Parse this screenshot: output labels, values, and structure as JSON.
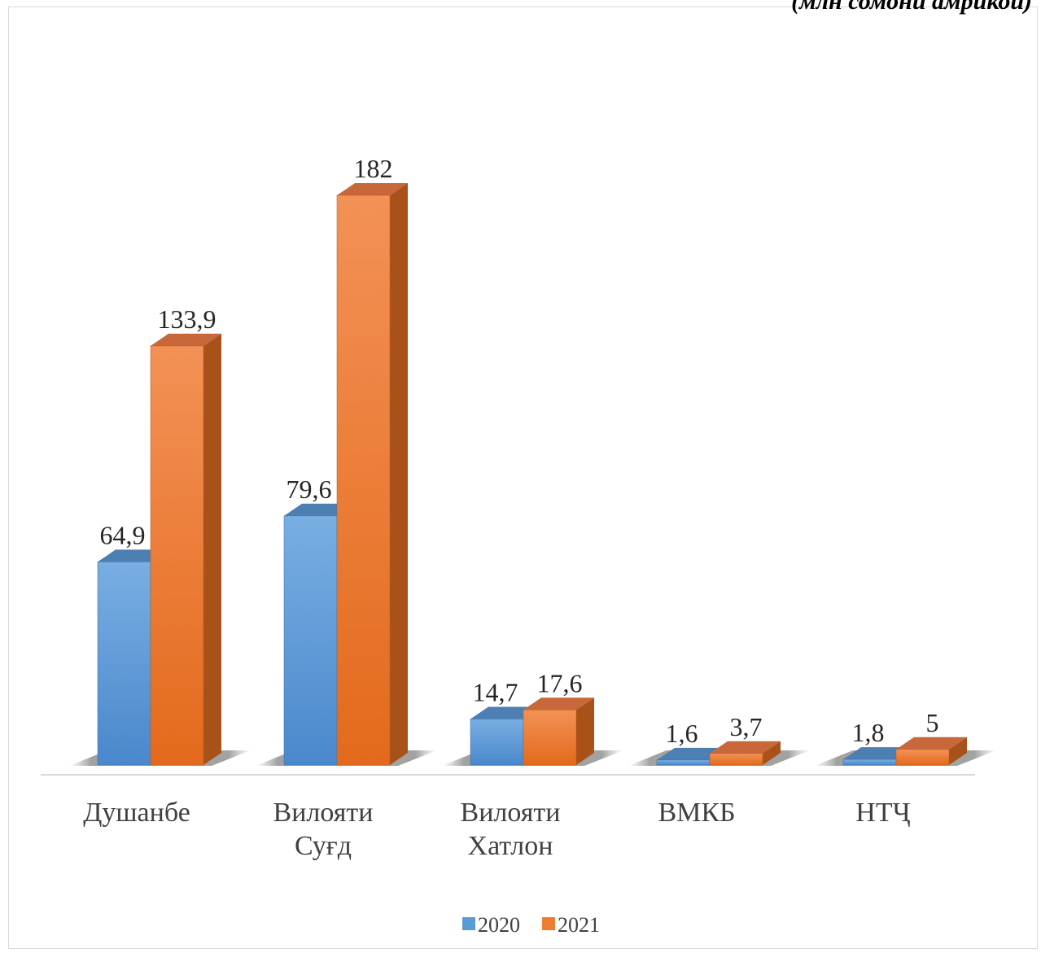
{
  "note": "(млн сомони амрикоӣ)",
  "chart_data": {
    "type": "bar",
    "categories": [
      [
        "Душанбе"
      ],
      [
        "Вилояти",
        "Суғд"
      ],
      [
        "Вилояти",
        "Хатлон"
      ],
      [
        "ВМКБ"
      ],
      [
        "НТҶ"
      ]
    ],
    "series": [
      {
        "name": "2020",
        "values": [
          64.9,
          79.6,
          14.7,
          1.6,
          1.8
        ],
        "labels": [
          "64,9",
          "79,6",
          "14,7",
          "1,6",
          "1,8"
        ],
        "color": "#5b9bd5"
      },
      {
        "name": "2021",
        "values": [
          133.9,
          182,
          17.6,
          3.7,
          5
        ],
        "labels": [
          "133,9",
          "182",
          "17,6",
          "3,7",
          "5"
        ],
        "color": "#ed7d31"
      }
    ],
    "ylim": [
      0,
      182
    ],
    "legend": "bottom",
    "grid": false,
    "style": "3d-clustered-column"
  }
}
